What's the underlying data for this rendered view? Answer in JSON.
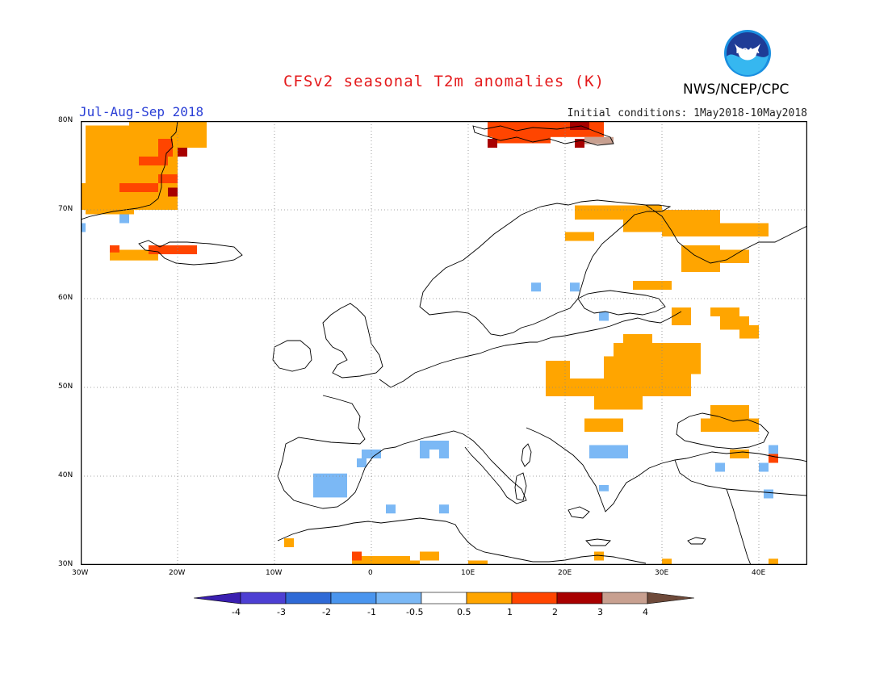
{
  "header": {
    "title": "CFSv2 seasonal T2m anomalies (K)",
    "period": "Jul-Aug-Sep 2018",
    "initial_conditions": "Initial conditions: 1May2018-10May2018",
    "agency": "NWS/NCEP/CPC",
    "logo_text": "NOAA"
  },
  "map": {
    "lon_range": [
      -30,
      45
    ],
    "lat_range": [
      30,
      80
    ],
    "lon_ticks": [
      "30W",
      "20W",
      "10W",
      "0",
      "10E",
      "20E",
      "30E",
      "40E"
    ],
    "lat_ticks": [
      "80N",
      "70N",
      "60N",
      "50N",
      "40N",
      "30N"
    ],
    "grid": "dotted"
  },
  "colorbar": {
    "labels": [
      "-4",
      "-3",
      "-2",
      "-1",
      "-0.5",
      "0.5",
      "1",
      "2",
      "3",
      "4"
    ],
    "colors": [
      "#3a1fb0",
      "#4d3fd3",
      "#2f6ad6",
      "#4a95ee",
      "#7bb8f5",
      "#ffffff",
      "#ffa500",
      "#ff4500",
      "#a80000",
      "#c8a090",
      "#6e4a3a"
    ]
  },
  "anomalies": {
    "warm_1": [
      {
        "lon": -29.5,
        "lat": 79.5,
        "w": 5,
        "h": 10
      },
      {
        "lon": -25,
        "lat": 80,
        "w": 5,
        "h": 10
      },
      {
        "lon": -20,
        "lat": 80,
        "w": 3,
        "h": 3
      },
      {
        "lon": -30,
        "lat": 73,
        "w": 4,
        "h": 3
      },
      {
        "lon": -27,
        "lat": 65.5,
        "w": 5,
        "h": 1.2
      },
      {
        "lon": 21,
        "lat": 70.5,
        "w": 9,
        "h": 1.6
      },
      {
        "lon": 26,
        "lat": 70,
        "w": 4,
        "h": 2.5
      },
      {
        "lon": 29,
        "lat": 70,
        "w": 7,
        "h": 2.5
      },
      {
        "lon": 30,
        "lat": 68.5,
        "w": 11,
        "h": 1.5
      },
      {
        "lon": 32,
        "lat": 66,
        "w": 4,
        "h": 3
      },
      {
        "lon": 35,
        "lat": 65.5,
        "w": 4,
        "h": 1.5
      },
      {
        "lon": 20,
        "lat": 67.5,
        "w": 3,
        "h": 1
      },
      {
        "lon": 27,
        "lat": 62,
        "w": 4,
        "h": 1
      },
      {
        "lon": 31,
        "lat": 59,
        "w": 2,
        "h": 2
      },
      {
        "lon": 35,
        "lat": 59,
        "w": 3,
        "h": 1
      },
      {
        "lon": 36,
        "lat": 58,
        "w": 3,
        "h": 1.5
      },
      {
        "lon": 38,
        "lat": 57,
        "w": 2,
        "h": 1.5
      },
      {
        "lon": 26,
        "lat": 56,
        "w": 3,
        "h": 1.5
      },
      {
        "lon": 25,
        "lat": 55,
        "w": 9,
        "h": 2
      },
      {
        "lon": 24,
        "lat": 53.5,
        "w": 10,
        "h": 2
      },
      {
        "lon": 18,
        "lat": 53,
        "w": 2.5,
        "h": 3
      },
      {
        "lon": 18,
        "lat": 51,
        "w": 7,
        "h": 2
      },
      {
        "lon": 24,
        "lat": 51.5,
        "w": 9,
        "h": 2.5
      },
      {
        "lon": 23,
        "lat": 49,
        "w": 5,
        "h": 1.5
      },
      {
        "lon": 22,
        "lat": 46.5,
        "w": 4,
        "h": 1.5
      },
      {
        "lon": 35,
        "lat": 48,
        "w": 4,
        "h": 1.5
      },
      {
        "lon": 34,
        "lat": 46.5,
        "w": 6,
        "h": 1.5
      },
      {
        "lon": 37,
        "lat": 43,
        "w": 2,
        "h": 1
      },
      {
        "lon": -9,
        "lat": 33,
        "w": 1,
        "h": 1
      },
      {
        "lon": -2,
        "lat": 31,
        "w": 6,
        "h": 1
      },
      {
        "lon": 1,
        "lat": 30.5,
        "w": 4,
        "h": 1
      },
      {
        "lon": 5,
        "lat": 31.5,
        "w": 2,
        "h": 1
      },
      {
        "lon": 10,
        "lat": 30.5,
        "w": 2,
        "h": 0.8
      },
      {
        "lon": 23,
        "lat": 31.5,
        "w": 1,
        "h": 1
      },
      {
        "lon": 30,
        "lat": 30.7,
        "w": 1,
        "h": 1
      },
      {
        "lon": 41,
        "lat": 30.7,
        "w": 1,
        "h": 1
      }
    ],
    "warm_2": [
      {
        "lon": -22,
        "lat": 78,
        "w": 1.5,
        "h": 2
      },
      {
        "lon": -24,
        "lat": 76,
        "w": 3,
        "h": 1
      },
      {
        "lon": -22,
        "lat": 74,
        "w": 2,
        "h": 1
      },
      {
        "lon": -26,
        "lat": 73,
        "w": 4,
        "h": 1
      },
      {
        "lon": -27,
        "lat": 66,
        "w": 1,
        "h": 0.8
      },
      {
        "lon": -23,
        "lat": 66,
        "w": 5,
        "h": 1
      },
      {
        "lon": 12,
        "lat": 80,
        "w": 12,
        "h": 1.8
      },
      {
        "lon": 12.5,
        "lat": 78.5,
        "w": 6,
        "h": 1
      },
      {
        "lon": -2,
        "lat": 31.5,
        "w": 1,
        "h": 1
      },
      {
        "lon": 41,
        "lat": 42.5,
        "w": 1,
        "h": 1
      }
    ],
    "warm_3": [
      {
        "lon": -20,
        "lat": 77,
        "w": 1,
        "h": 1
      },
      {
        "lon": -21,
        "lat": 72.5,
        "w": 1,
        "h": 1
      },
      {
        "lon": 12,
        "lat": 78,
        "w": 1,
        "h": 1
      },
      {
        "lon": 20.5,
        "lat": 80,
        "w": 2,
        "h": 1
      },
      {
        "lon": 21,
        "lat": 78,
        "w": 1,
        "h": 1
      }
    ],
    "warm_4": [
      {
        "lon": 22,
        "lat": 78.2,
        "w": 3,
        "h": 0.8
      }
    ],
    "cool_1": [
      {
        "lon": -26,
        "lat": 69.5,
        "w": 1,
        "h": 1
      },
      {
        "lon": -30,
        "lat": 68.5,
        "w": 0.5,
        "h": 1
      },
      {
        "lon": -6,
        "lat": 40.3,
        "w": 3.5,
        "h": 2.7
      },
      {
        "lon": -1,
        "lat": 43,
        "w": 2,
        "h": 1
      },
      {
        "lon": -1.5,
        "lat": 42,
        "w": 1,
        "h": 1
      },
      {
        "lon": 5,
        "lat": 44,
        "w": 3,
        "h": 1
      },
      {
        "lon": 5,
        "lat": 43,
        "w": 1,
        "h": 1
      },
      {
        "lon": 7,
        "lat": 43,
        "w": 1,
        "h": 1
      },
      {
        "lon": 1.5,
        "lat": 36.8,
        "w": 1,
        "h": 1
      },
      {
        "lon": 7,
        "lat": 36.8,
        "w": 1,
        "h": 1
      },
      {
        "lon": 16.5,
        "lat": 61.8,
        "w": 1,
        "h": 1
      },
      {
        "lon": 20.5,
        "lat": 61.8,
        "w": 1,
        "h": 1
      },
      {
        "lon": 23.5,
        "lat": 58.5,
        "w": 1,
        "h": 1
      },
      {
        "lon": 22.5,
        "lat": 43.5,
        "w": 4,
        "h": 1.5
      },
      {
        "lon": 23.5,
        "lat": 39,
        "w": 1,
        "h": 0.7
      },
      {
        "lon": 35.5,
        "lat": 41.5,
        "w": 1,
        "h": 1
      },
      {
        "lon": 40,
        "lat": 41.5,
        "w": 1,
        "h": 1
      },
      {
        "lon": 41,
        "lat": 43.5,
        "w": 1,
        "h": 1
      },
      {
        "lon": 40.5,
        "lat": 38.5,
        "w": 1,
        "h": 1
      }
    ]
  },
  "legend_colors": {
    "warm_1": "#ffa500",
    "warm_2": "#ff4500",
    "warm_3": "#a80000",
    "warm_4": "#c8a090",
    "cool_1": "#7bb8f5",
    "coast": "#000000",
    "grid": "#888888"
  }
}
